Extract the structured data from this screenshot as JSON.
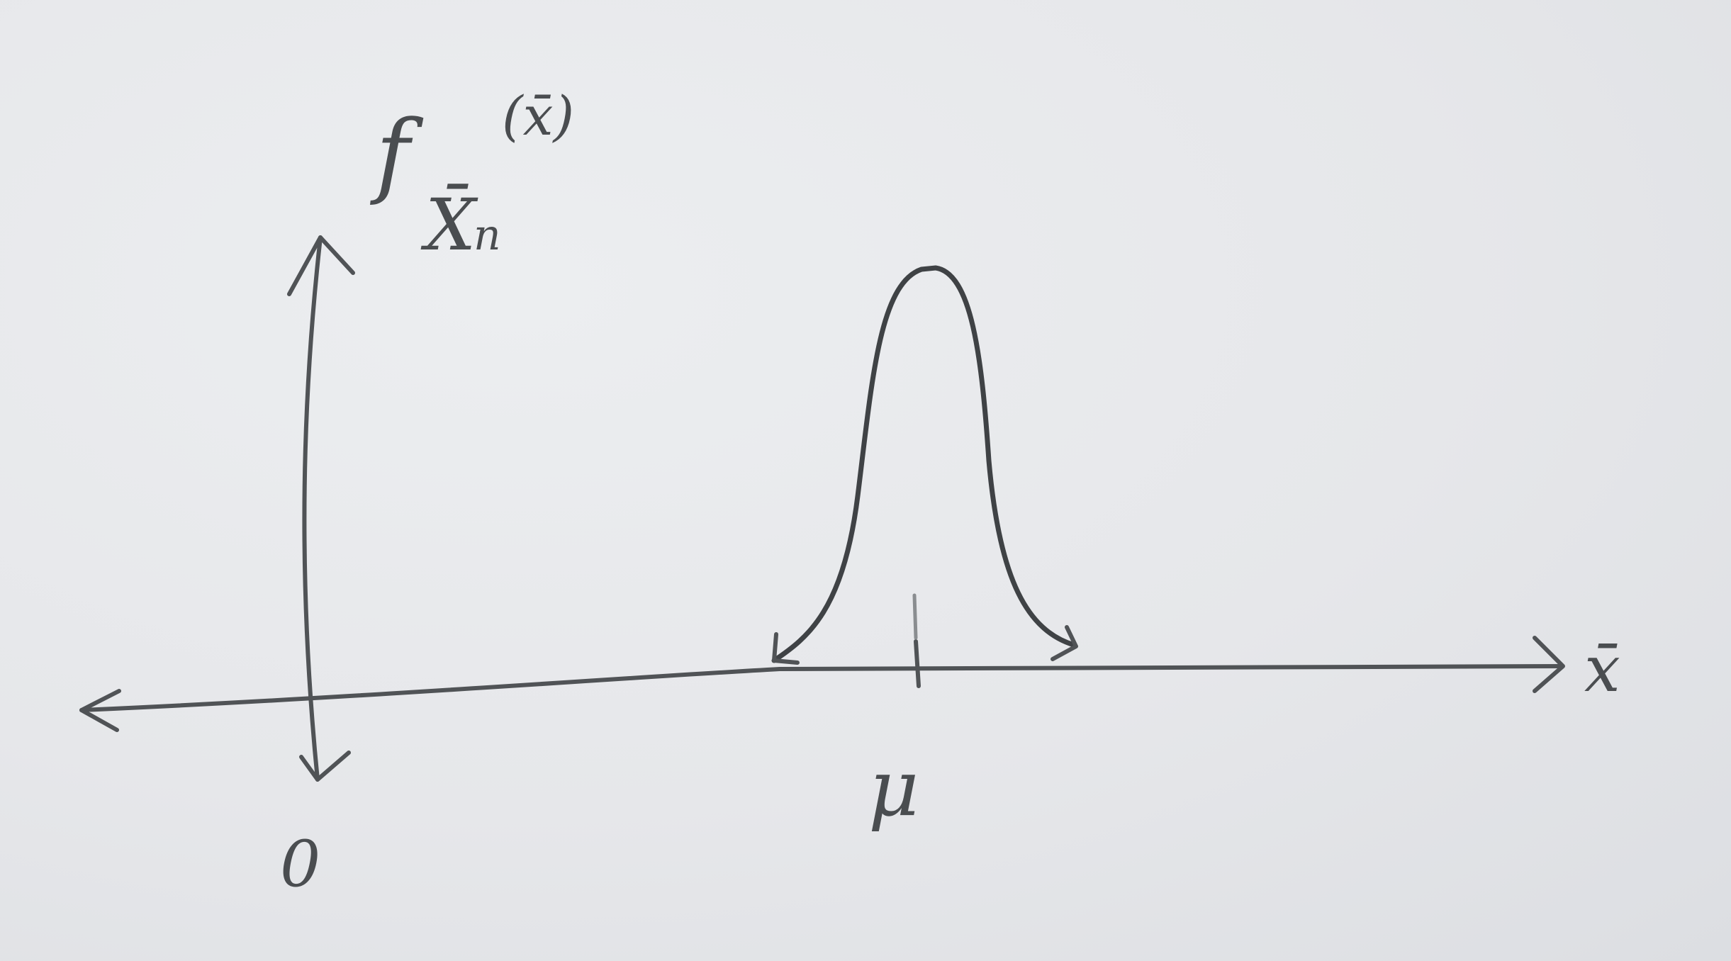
{
  "diagram": {
    "y_axis_label": {
      "main": "f",
      "subscript": "X̄",
      "sub_subscript": "n",
      "argument": "(x̄)"
    },
    "x_axis_label": "x̄",
    "origin_label": "0",
    "mean_label": "μ"
  },
  "colors": {
    "paper": "#e6e7ea",
    "pencil": "#505356"
  }
}
